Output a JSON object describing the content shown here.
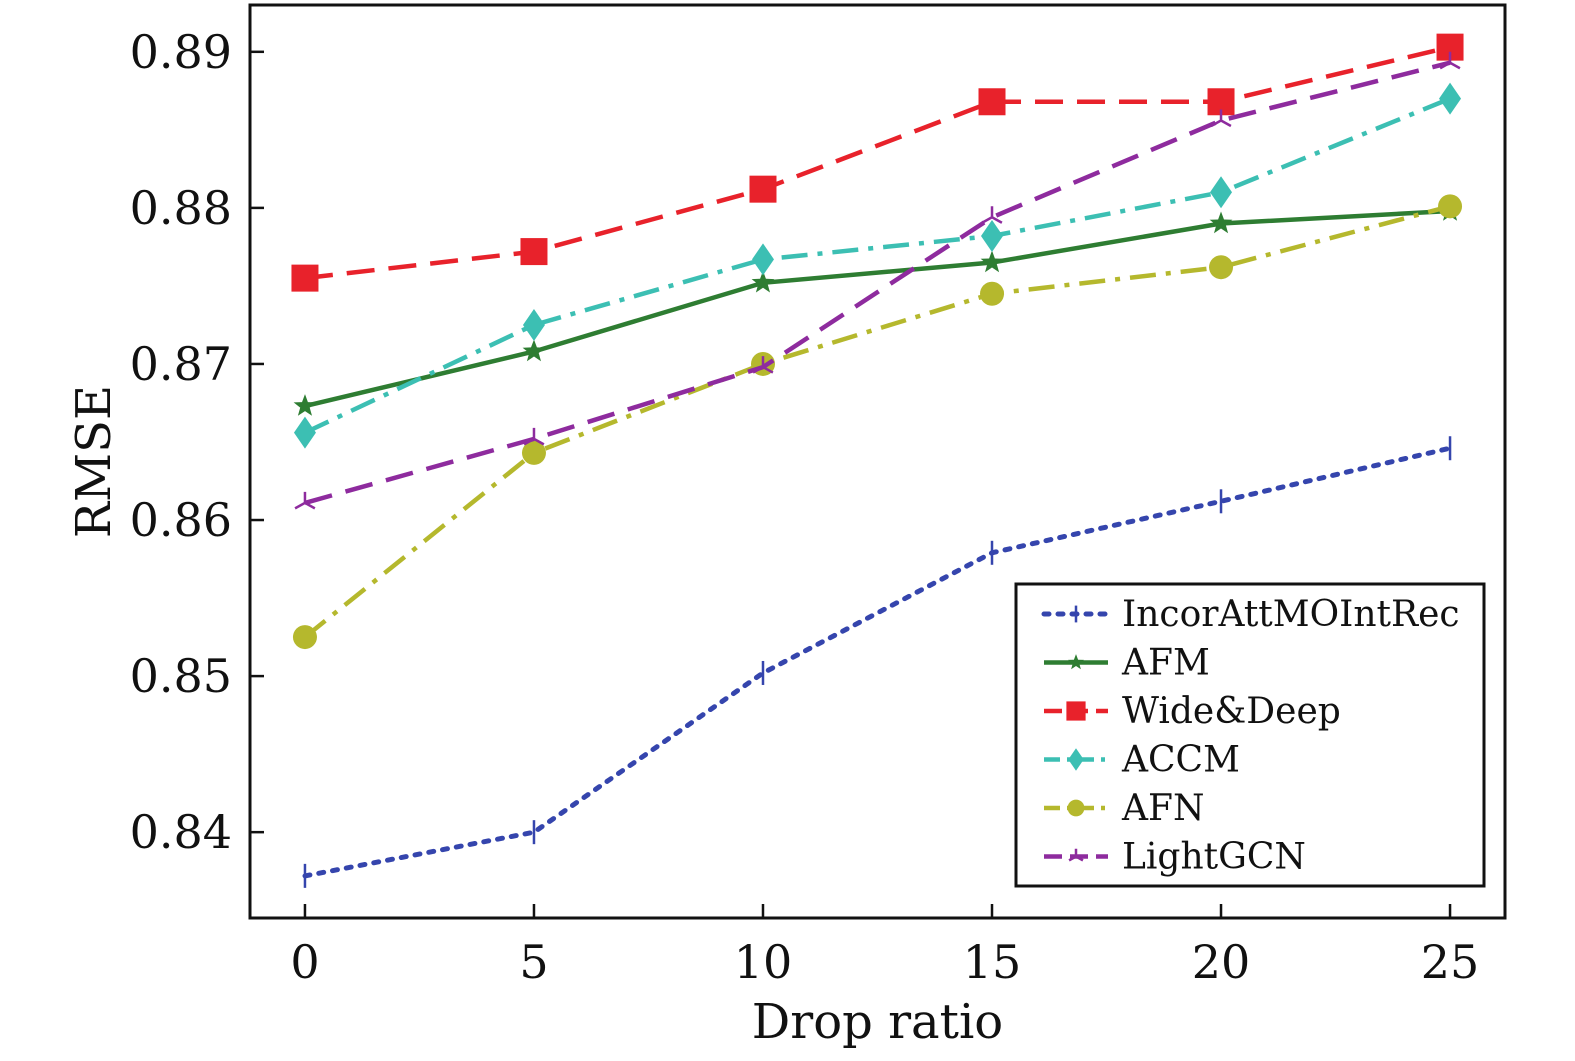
{
  "chart_data": {
    "type": "line",
    "xlabel": "Drop ratio",
    "ylabel": "RMSE",
    "x": [
      0,
      5,
      10,
      15,
      20,
      25
    ],
    "xlim": [
      -1.2,
      26.2
    ],
    "ylim": [
      0.8345,
      0.893
    ],
    "xticks": [
      "0",
      "5",
      "10",
      "15",
      "20",
      "25"
    ],
    "yticks": [
      "0.84",
      "0.85",
      "0.86",
      "0.87",
      "0.88",
      "0.89"
    ],
    "ytick_values": [
      0.84,
      0.85,
      0.86,
      0.87,
      0.88,
      0.89
    ],
    "grid": false,
    "legend_position": "bottom-right",
    "series": [
      {
        "name": "IncorAttMOIntRec",
        "values": [
          0.8372,
          0.84,
          0.8502,
          0.8579,
          0.8612,
          0.8646
        ],
        "color": "#3545ad",
        "dash": "dotted",
        "marker": "tick"
      },
      {
        "name": "AFM",
        "values": [
          0.8673,
          0.8708,
          0.8752,
          0.8765,
          0.879,
          0.8798
        ],
        "color": "#2e7d32",
        "dash": "solid",
        "marker": "star"
      },
      {
        "name": "Wide&Deep",
        "values": [
          0.8755,
          0.8772,
          0.8812,
          0.8868,
          0.8868,
          0.8903
        ],
        "color": "#e8222b",
        "dash": "dashed",
        "marker": "square"
      },
      {
        "name": "ACCM",
        "values": [
          0.8656,
          0.8725,
          0.8767,
          0.8782,
          0.881,
          0.887
        ],
        "color": "#3cbfb3",
        "dash": "dashdot",
        "marker": "diamond"
      },
      {
        "name": "AFN",
        "values": [
          0.8525,
          0.8643,
          0.87,
          0.8745,
          0.8762,
          0.8801
        ],
        "color": "#b5b82d",
        "dash": "dashdot",
        "marker": "circle"
      },
      {
        "name": "LightGCN",
        "values": [
          0.8611,
          0.8652,
          0.8698,
          0.8794,
          0.8856,
          0.8893
        ],
        "color": "#8e2b9e",
        "dash": "dashed",
        "marker": "tri"
      }
    ]
  }
}
